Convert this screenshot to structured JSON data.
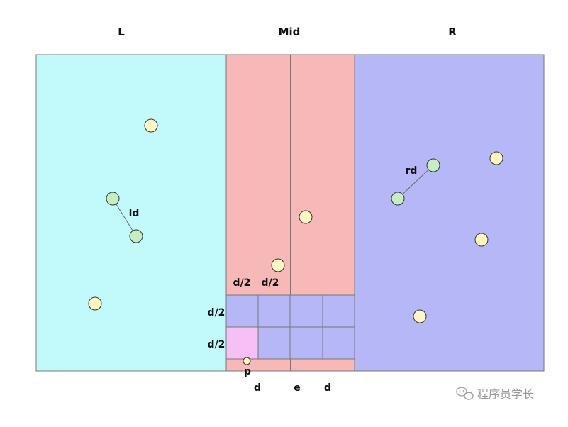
{
  "labels": {
    "left": "L",
    "mid": "Mid",
    "right": "R",
    "ld": "ld",
    "rd": "rd",
    "half_col_1": "d/2",
    "half_col_2": "d/2",
    "half_row_1": "d/2",
    "half_row_2": "d/2",
    "point_p": "p",
    "bottom_d_left": "d",
    "bottom_e": "e",
    "bottom_d_right": "d"
  },
  "watermark": {
    "text": "程序员学长",
    "icon": "wechat-icon"
  },
  "colors": {
    "left_region": "#c2fafc",
    "mid_region": "#f7b9b8",
    "right_region": "#b6b7f7",
    "grid_cell": "#b6b7f7",
    "highlight_cell": "#f5c0f5",
    "point_yellow": "#fdf8c0",
    "point_green": "#c6eec2",
    "outline": "#777777"
  }
}
